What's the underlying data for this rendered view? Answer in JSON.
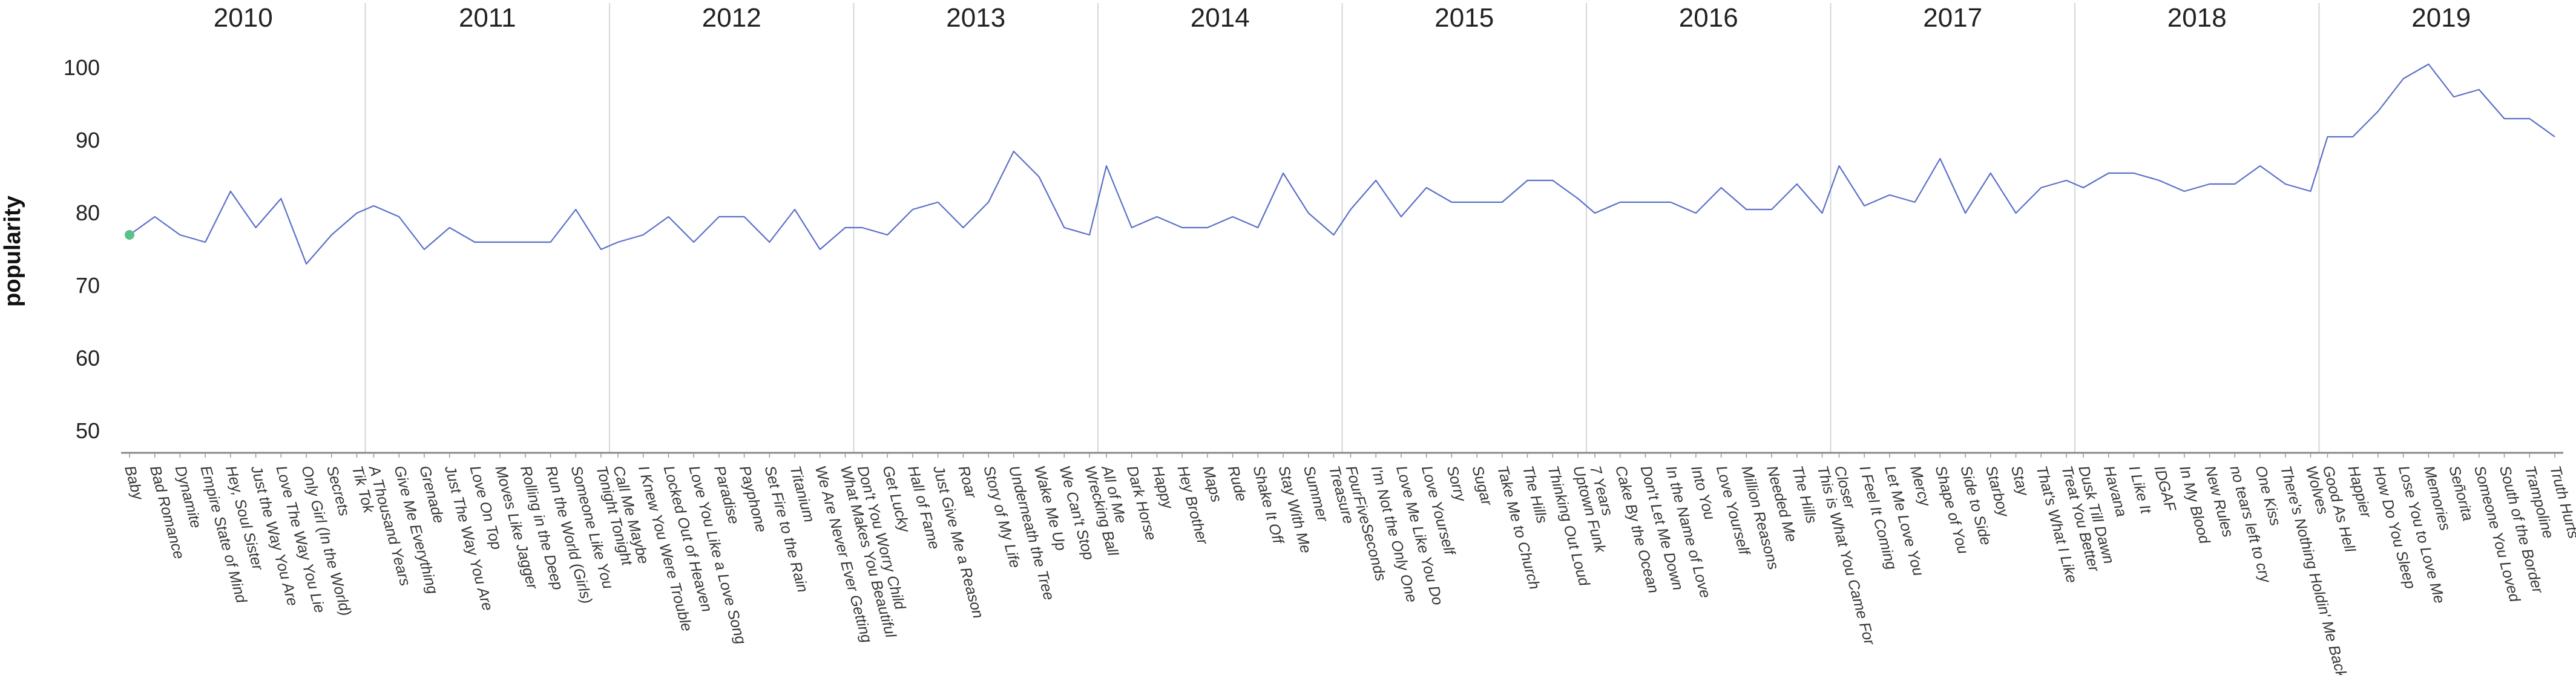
{
  "colors": {
    "line": "#5b6fc9",
    "highlight_point": "#5cc08a",
    "divider": "#d6d6d6",
    "axis": "#888888"
  },
  "chart_data": {
    "type": "line",
    "title": "",
    "xlabel": "",
    "ylabel": "popularity",
    "ylim": [
      47,
      106
    ],
    "yticks": [
      50,
      60,
      70,
      80,
      90,
      100
    ],
    "grid": false,
    "legend": "none",
    "facet_labels": [
      "2010",
      "2011",
      "2012",
      "2013",
      "2014",
      "2015",
      "2016",
      "2017",
      "2018",
      "2019"
    ],
    "highlighted_point": "Baby",
    "facets": [
      {
        "year": "2010",
        "songs": [
          "Baby",
          "Bad Romance",
          "Dynamite",
          "Empire State of Mind",
          "Hey, Soul Sister",
          "Just the Way You Are",
          "Love The Way You Lie",
          "Only Girl (In the World)",
          "Secrets",
          "Tik Tok"
        ],
        "popularity": [
          77,
          79.5,
          77,
          76,
          83,
          78,
          82,
          73,
          77,
          80
        ]
      },
      {
        "year": "2011",
        "songs": [
          "A Thousand Years",
          "Give Me Everything",
          "Grenade",
          "Just The Way You Are",
          "Love On Top",
          "Moves Like Jagger",
          "Rolling in the Deep",
          "Run the World (Girls)",
          "Someone Like You",
          "Tonight Tonight"
        ],
        "popularity": [
          81,
          79.5,
          75,
          78,
          76,
          76,
          76,
          76,
          80.5,
          75
        ]
      },
      {
        "year": "2012",
        "songs": [
          "Call Me Maybe",
          "I Knew You Were Trouble",
          "Locked Out of Heaven",
          "Love You Like a Love Song",
          "Paradise",
          "Payphone",
          "Set Fire to the Rain",
          "Titanium",
          "We Are Never Ever Getting",
          "What Makes You Beautiful"
        ],
        "popularity": [
          76,
          77,
          79.5,
          76,
          79.5,
          79.5,
          76,
          80.5,
          75,
          78
        ]
      },
      {
        "year": "2013",
        "songs": [
          "Don't You Worry Child",
          "Get Lucky",
          "Hall of Fame",
          "Just Give Me a Reason",
          "Roar",
          "Story of My Life",
          "Underneath the Tree",
          "Wake Me Up",
          "We Can't Stop",
          "Wrecking Ball"
        ],
        "popularity": [
          78,
          77,
          80.5,
          81.5,
          78,
          81.5,
          88.5,
          85,
          78,
          77
        ]
      },
      {
        "year": "2014",
        "songs": [
          "All of Me",
          "Dark Horse",
          "Happy",
          "Hey Brother",
          "Maps",
          "Rude",
          "Shake It Off",
          "Stay With Me",
          "Summer",
          "Treasure"
        ],
        "popularity": [
          86.5,
          78,
          79.5,
          78,
          78,
          79.5,
          78,
          85.5,
          80,
          77
        ]
      },
      {
        "year": "2015",
        "songs": [
          "FourFiveSeconds",
          "I'm Not the Only One",
          "Love Me Like You Do",
          "Love Yourself",
          "Sorry",
          "Sugar",
          "Take Me to Church",
          "The Hills",
          "Thinking Out Loud",
          "Uptown Funk"
        ],
        "popularity": [
          80.5,
          84.5,
          79.5,
          83.5,
          81.5,
          81.5,
          81.5,
          84.5,
          84.5,
          82
        ]
      },
      {
        "year": "2016",
        "songs": [
          "7 Years",
          "Cake By the Ocean",
          "Don't Let Me Down",
          "In the Name of Love",
          "Into You",
          "Love Yourself",
          "Million Reasons",
          "Needed Me",
          "The Hills",
          "This is What You Came For"
        ],
        "popularity": [
          80,
          81.5,
          81.5,
          81.5,
          80,
          83.5,
          80.5,
          80.5,
          84,
          80
        ]
      },
      {
        "year": "2017",
        "songs": [
          "Closer",
          "I Feel It Coming",
          "Let Me Love You",
          "Mercy",
          "Shape of You",
          "Side to Side",
          "Starboy",
          "Stay",
          "That's What I Like",
          "Treat You Better"
        ],
        "popularity": [
          86.5,
          81,
          82.5,
          81.5,
          87.5,
          80,
          85.5,
          80,
          83.5,
          84.5
        ]
      },
      {
        "year": "2018",
        "songs": [
          "Dusk Till Dawn",
          "Havana",
          "I Like It",
          "IDGAF",
          "In My Blood",
          "New Rules",
          "no tears left to cry",
          "One Kiss",
          "There's Nothing Holdin' Me Back",
          "Wolves"
        ],
        "popularity": [
          83.5,
          85.5,
          85.5,
          84.5,
          83,
          84,
          84,
          86.5,
          84,
          83
        ]
      },
      {
        "year": "2019",
        "songs": [
          "Good As Hell",
          "Happier",
          "How Do You Sleep",
          "Lose You to Love Me",
          "Memories",
          "Señorita",
          "Someone You Loved",
          "South of the Border",
          "Trampoline",
          "Truth Hurts"
        ],
        "popularity": [
          90.5,
          90.5,
          94,
          98.5,
          100.5,
          96,
          97,
          93,
          93,
          90.5
        ]
      }
    ]
  }
}
